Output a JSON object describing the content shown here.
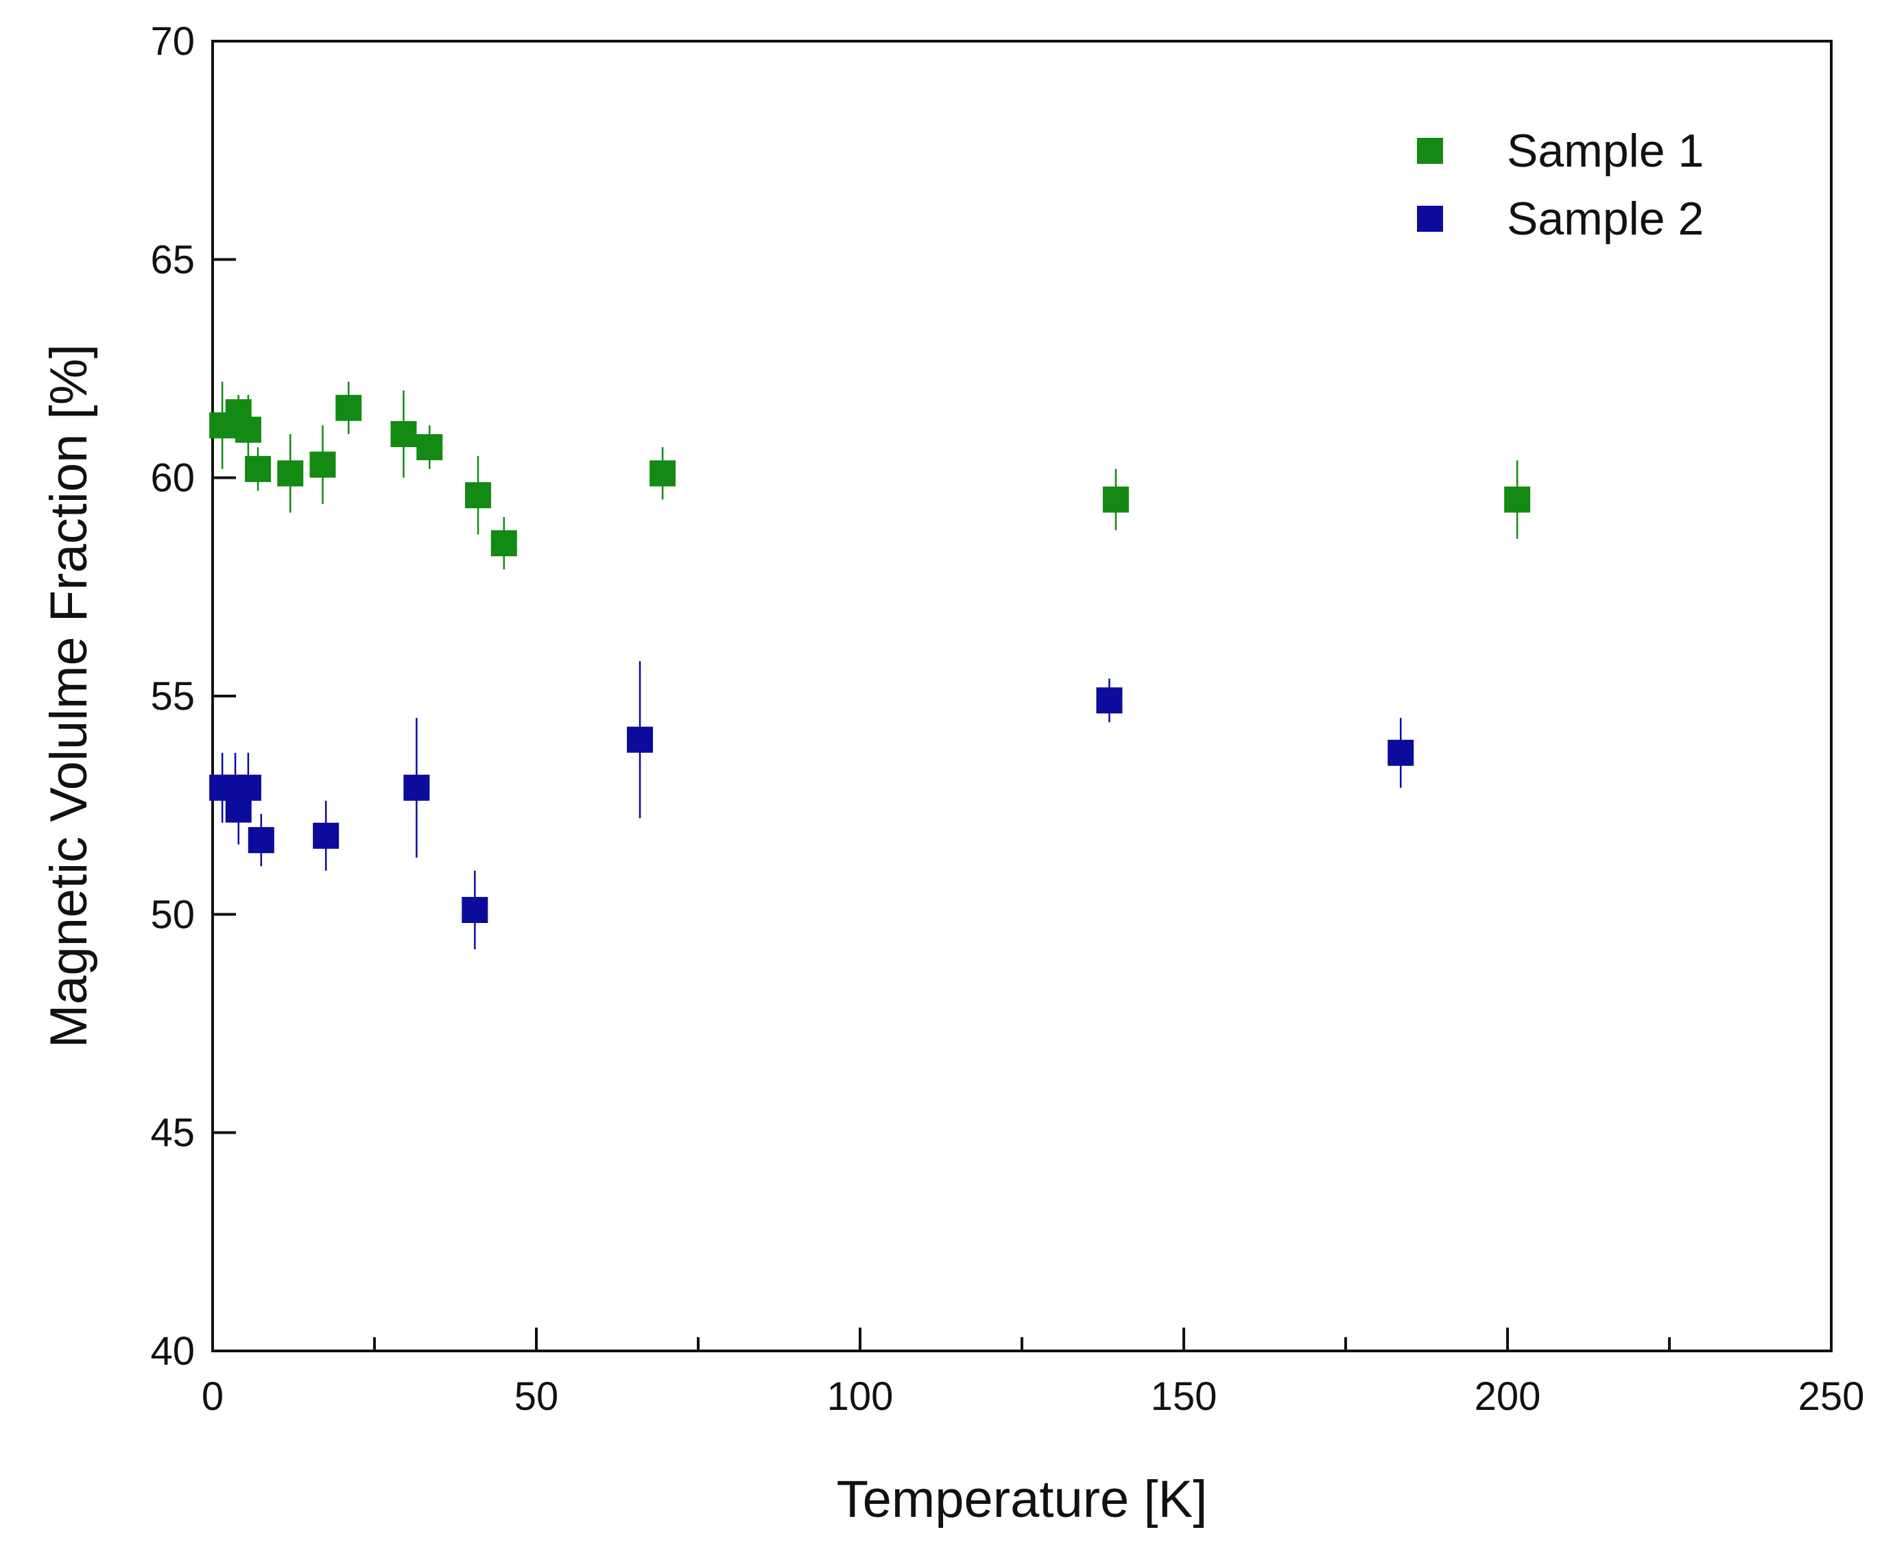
{
  "chart_data": {
    "type": "scatter",
    "title": "",
    "xlabel": "Temperature [K]",
    "ylabel": "Magnetic Volulme Fraction [%]",
    "xlim": [
      0,
      250
    ],
    "ylim": [
      40,
      70
    ],
    "x_ticks": [
      0,
      50,
      100,
      150,
      200,
      250
    ],
    "x_minor_ticks": [
      25,
      75,
      125,
      175,
      225
    ],
    "y_ticks": [
      40,
      45,
      50,
      55,
      60,
      65,
      70
    ],
    "grid": false,
    "legend_position": "top-right",
    "series": [
      {
        "name": "Sample 1",
        "color": "#138a13",
        "x": [
          1.5,
          4.0,
          5.5,
          7.0,
          12.0,
          17.0,
          21.0,
          29.5,
          33.5,
          41.0,
          45.0,
          69.5,
          139.5,
          201.5
        ],
        "y": [
          61.2,
          61.5,
          61.1,
          60.2,
          60.1,
          60.3,
          61.6,
          61.0,
          60.7,
          59.6,
          58.5,
          60.1,
          59.5,
          59.5
        ],
        "error": [
          1.0,
          0.4,
          0.8,
          0.5,
          0.9,
          0.9,
          0.6,
          1.0,
          0.5,
          0.9,
          0.6,
          0.6,
          0.7,
          0.9
        ]
      },
      {
        "name": "Sample 2",
        "color": "#0b0b9c",
        "x": [
          1.5,
          3.5,
          4.0,
          5.5,
          7.5,
          17.5,
          31.5,
          40.5,
          66.0,
          138.5,
          183.5
        ],
        "y": [
          52.9,
          52.9,
          52.4,
          52.9,
          51.7,
          51.8,
          52.9,
          50.1,
          54.0,
          54.9,
          53.7
        ],
        "error": [
          0.8,
          0.8,
          0.8,
          0.8,
          0.6,
          0.8,
          1.6,
          0.9,
          1.8,
          0.5,
          0.8
        ]
      }
    ]
  }
}
